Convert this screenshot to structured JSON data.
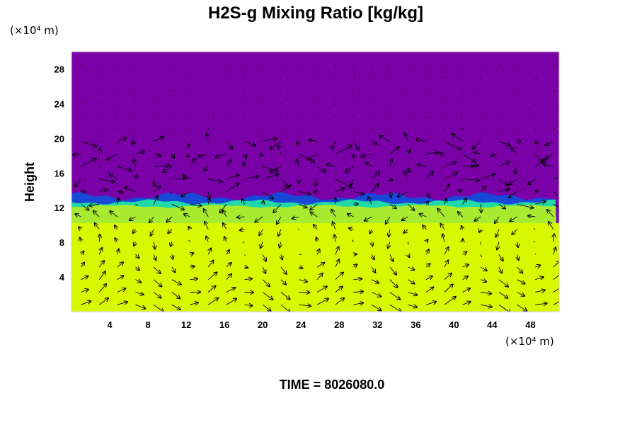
{
  "chart_data": {
    "type": "heatmap",
    "title": "H2S-g Mixing Ratio [kg/kg]",
    "ylabel": "Height",
    "x_unit_label": "(×10⁴ m)",
    "y_unit_label": "(×10⁴ m)",
    "xlim": [
      0,
      51
    ],
    "ylim": [
      0,
      30
    ],
    "x_ticks": [
      "4",
      "8",
      "12",
      "16",
      "20",
      "24",
      "28",
      "32",
      "36",
      "40",
      "44",
      "48"
    ],
    "y_ticks": [
      "4",
      "8",
      "12",
      "16",
      "20",
      "24",
      "28"
    ],
    "colors": {
      "upper_layer": "#7a00a8",
      "interface": "#1848d8",
      "transition": "#20d8a8",
      "mid_layer": "#a8ea30",
      "lower_layer": "#d8f800"
    },
    "interface_height": 12.5,
    "vector_field": true,
    "footer": "TIME = 8026080.0"
  }
}
